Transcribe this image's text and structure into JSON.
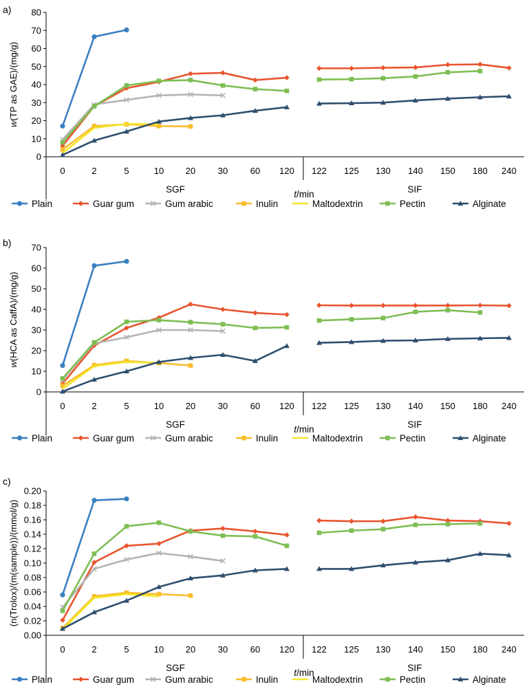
{
  "figure": {
    "series_colors": {
      "Plain": "#3a7fc1",
      "Guar gum": "#e8552f",
      "Gum arabic": "#b4b4b4",
      "Inulin": "#f9bd2c",
      "Maltodextrin": "#f2e62a",
      "Pectin": "#7ebe54",
      "Alginate": "#2f4e6f"
    },
    "series_markers": {
      "Plain": "circle",
      "Guar gum": "diamond",
      "Gum arabic": "x",
      "Inulin": "square",
      "Maltodextrin": "none",
      "Pectin": "square",
      "Alginate": "triangle"
    },
    "group_labels": [
      "SGF",
      "SIF"
    ],
    "x_label_prefix": "t",
    "x_label_suffix": "/min"
  },
  "chart_data": [
    {
      "type": "line",
      "panel_label": "a)",
      "ylabel": "w(TP as GAE)/(mg/g)",
      "ylabel_italic": "w",
      "ylabel_rest": "(TP as GAE)/(mg/g)",
      "ylim": [
        0,
        80
      ],
      "yticks": [
        "0",
        "10",
        "20",
        "30",
        "40",
        "50",
        "60",
        "70",
        "80"
      ],
      "categories": [
        "0",
        "2",
        "5",
        "10",
        "20",
        "30",
        "60",
        "120",
        "122",
        "125",
        "130",
        "140",
        "150",
        "180",
        "240"
      ],
      "series": [
        {
          "name": "Plain",
          "values": [
            17,
            66.5,
            70.3,
            null,
            null,
            null,
            null,
            null,
            null,
            null,
            null,
            null,
            null,
            null,
            null
          ]
        },
        {
          "name": "Guar gum",
          "values": [
            6,
            28,
            38,
            41.5,
            46,
            46.5,
            42.5,
            43.8,
            49,
            49,
            49.3,
            49.5,
            51,
            51.2,
            49.2
          ]
        },
        {
          "name": "Gum arabic",
          "values": [
            9.5,
            29,
            31.5,
            34,
            34.5,
            34,
            null,
            null,
            null,
            null,
            null,
            null,
            null,
            null,
            null
          ]
        },
        {
          "name": "Inulin",
          "values": [
            4,
            17,
            18,
            17,
            16.8,
            null,
            null,
            null,
            null,
            null,
            null,
            null,
            null,
            null,
            null
          ]
        },
        {
          "name": "Maltodextrin",
          "values": [
            2,
            16,
            18.2,
            18,
            null,
            null,
            null,
            null,
            null,
            null,
            null,
            null,
            null,
            null,
            null
          ]
        },
        {
          "name": "Pectin",
          "values": [
            8,
            28,
            39.5,
            42,
            42.5,
            39.5,
            37.5,
            36.5,
            42.8,
            43,
            43.5,
            44.5,
            46.8,
            47.5,
            null
          ]
        },
        {
          "name": "Alginate",
          "values": [
            1,
            9,
            14,
            19.5,
            21.5,
            23,
            25.5,
            27.5,
            29.5,
            29.7,
            30,
            31.2,
            32.2,
            33,
            33.5
          ]
        }
      ]
    },
    {
      "type": "line",
      "panel_label": "b)",
      "ylabel": "w(HCA as CaffA)/(mg/g)",
      "ylabel_italic": "w",
      "ylabel_rest": "(HCA as CaffA)/(mg/g)",
      "ylim": [
        0,
        70
      ],
      "yticks": [
        "0",
        "10",
        "20",
        "30",
        "40",
        "50",
        "60",
        "70"
      ],
      "categories": [
        "0",
        "2",
        "5",
        "10",
        "20",
        "30",
        "60",
        "120",
        "122",
        "125",
        "130",
        "140",
        "150",
        "180",
        "240"
      ],
      "series": [
        {
          "name": "Plain",
          "values": [
            12.8,
            61.2,
            63.3,
            null,
            null,
            null,
            null,
            null,
            null,
            null,
            null,
            null,
            null,
            null,
            null
          ]
        },
        {
          "name": "Guar gum",
          "values": [
            4,
            22.5,
            31,
            36,
            42.5,
            40,
            38.3,
            37.5,
            42,
            41.9,
            41.9,
            41.9,
            41.9,
            42,
            41.8
          ]
        },
        {
          "name": "Gum arabic",
          "values": [
            6,
            23.5,
            26.5,
            30,
            30,
            29.5,
            null,
            null,
            null,
            null,
            null,
            null,
            null,
            null,
            null
          ]
        },
        {
          "name": "Inulin",
          "values": [
            3,
            13,
            15,
            14,
            12.8,
            null,
            null,
            null,
            null,
            null,
            null,
            null,
            null,
            null,
            null
          ]
        },
        {
          "name": "Maltodextrin",
          "values": [
            1.5,
            12.5,
            14.5,
            14,
            null,
            null,
            null,
            null,
            null,
            null,
            null,
            null,
            null,
            null,
            null
          ]
        },
        {
          "name": "Pectin",
          "values": [
            6.5,
            24,
            34,
            34.8,
            33.8,
            32.8,
            31,
            31.3,
            34.6,
            35.2,
            35.8,
            38.8,
            39.6,
            38.5,
            null
          ]
        },
        {
          "name": "Alginate",
          "values": [
            0.2,
            6,
            10,
            14.5,
            16.5,
            18,
            15,
            22.3,
            23.8,
            24.2,
            24.8,
            25,
            25.7,
            26,
            26.2
          ]
        }
      ]
    },
    {
      "type": "line",
      "panel_label": "c)",
      "ylabel": "(n(Trolox)/(m(sample))/(mmol/g)",
      "ylabel_italic": "",
      "ylabel_rest": "",
      "ylim": [
        0,
        0.2
      ],
      "yticks": [
        "0.00",
        "0.02",
        "0.04",
        "0.06",
        "0.08",
        "0.10",
        "0.12",
        "0.14",
        "0.16",
        "0.18",
        "0.20"
      ],
      "categories": [
        "0",
        "2",
        "5",
        "10",
        "20",
        "30",
        "60",
        "120",
        "122",
        "125",
        "130",
        "140",
        "150",
        "180",
        "240"
      ],
      "series": [
        {
          "name": "Plain",
          "values": [
            0.056,
            0.187,
            0.189,
            null,
            null,
            null,
            null,
            null,
            null,
            null,
            null,
            null,
            null,
            null,
            null
          ]
        },
        {
          "name": "Guar gum",
          "values": [
            0.021,
            0.101,
            0.124,
            0.127,
            0.145,
            0.148,
            0.144,
            0.139,
            0.159,
            0.158,
            0.158,
            0.164,
            0.159,
            0.158,
            0.155
          ]
        },
        {
          "name": "Gum arabic",
          "values": [
            0.039,
            0.092,
            0.105,
            0.114,
            0.109,
            0.103,
            null,
            null,
            null,
            null,
            null,
            null,
            null,
            null,
            null
          ]
        },
        {
          "name": "Inulin",
          "values": [
            0.01,
            0.054,
            0.059,
            0.057,
            0.055,
            null,
            null,
            null,
            null,
            null,
            null,
            null,
            null,
            null,
            null
          ]
        },
        {
          "name": "Maltodextrin",
          "values": [
            0.008,
            0.052,
            0.057,
            0.054,
            null,
            null,
            null,
            null,
            null,
            null,
            null,
            null,
            null,
            null,
            null
          ]
        },
        {
          "name": "Pectin",
          "values": [
            0.034,
            0.113,
            0.151,
            0.156,
            0.144,
            0.138,
            0.137,
            0.124,
            0.142,
            0.145,
            0.147,
            0.153,
            0.154,
            0.155,
            null
          ]
        },
        {
          "name": "Alginate",
          "values": [
            0.009,
            0.032,
            0.048,
            0.067,
            0.079,
            0.083,
            0.09,
            0.092,
            0.092,
            0.092,
            0.097,
            0.101,
            0.104,
            0.113,
            0.111
          ]
        }
      ]
    }
  ]
}
